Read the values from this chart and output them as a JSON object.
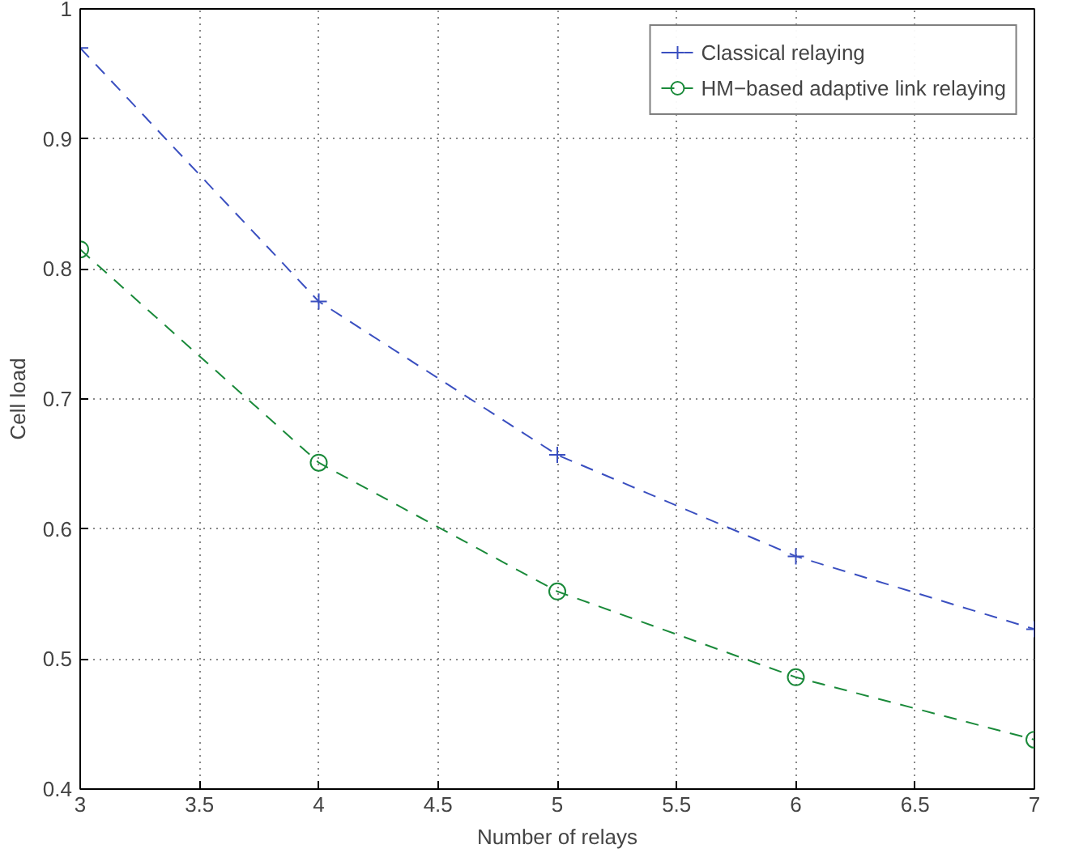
{
  "chart_data": {
    "type": "line",
    "xlabel": "Number of relays",
    "ylabel": "Cell load",
    "x": [
      3,
      4,
      5,
      6,
      7
    ],
    "series": [
      {
        "name": "Classical relaying",
        "color": "#3a4fc0",
        "marker": "cross",
        "values": [
          0.97,
          0.775,
          0.657,
          0.579,
          0.523
        ]
      },
      {
        "name": "HM−based adaptive link relaying",
        "color": "#1a8a3a",
        "marker": "circle",
        "values": [
          0.815,
          0.651,
          0.552,
          0.486,
          0.438
        ]
      }
    ],
    "xlim": [
      3,
      7
    ],
    "ylim": [
      0.4,
      1
    ],
    "xticks": [
      3,
      3.5,
      4,
      4.5,
      5,
      5.5,
      6,
      6.5,
      7
    ],
    "yticks": [
      0.4,
      0.5,
      0.6,
      0.7,
      0.8,
      0.9,
      1
    ],
    "grid": true,
    "legend": "top right",
    "line_style": "dashed"
  }
}
